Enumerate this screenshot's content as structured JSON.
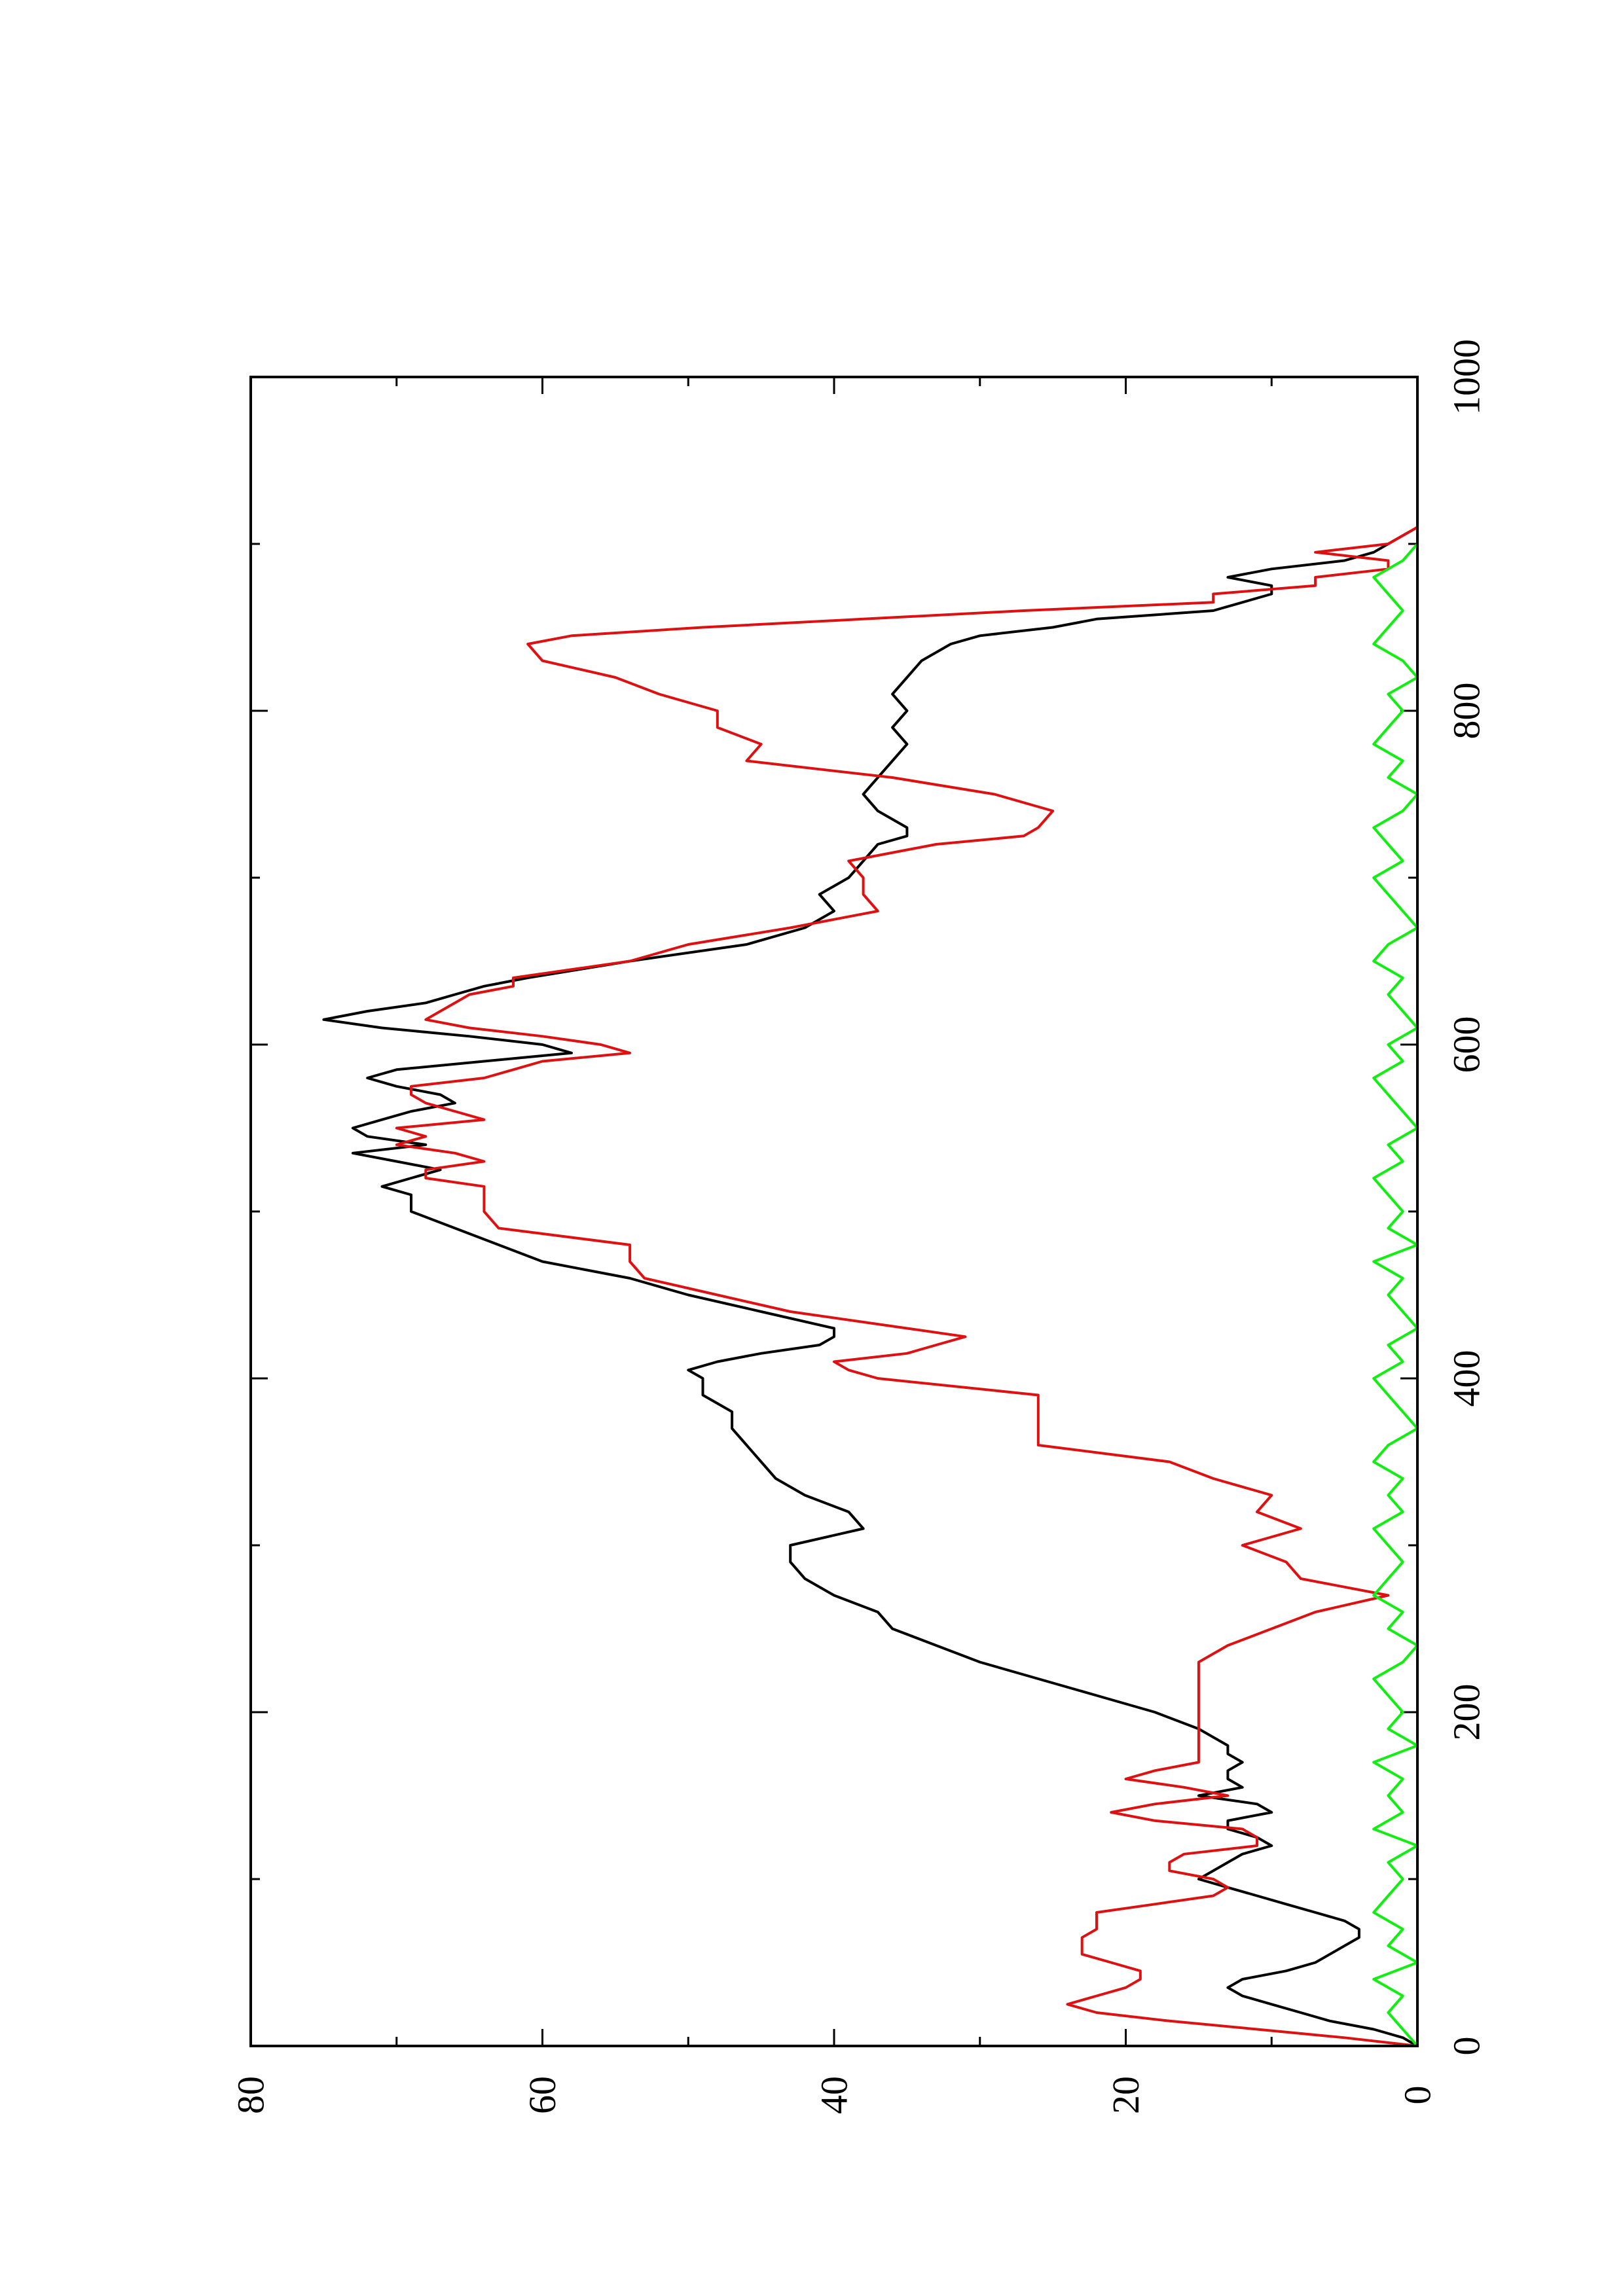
{
  "chart_data": {
    "type": "line",
    "orientation": "rotated 90 degrees counter-clockwise",
    "title": "",
    "xlabel": "",
    "ylabel": "",
    "xlim": [
      0,
      1000
    ],
    "ylim": [
      0,
      80
    ],
    "x_ticks": [
      "0",
      "200",
      "400",
      "600",
      "800",
      "1000"
    ],
    "y_ticks": [
      "0",
      "20",
      "40",
      "60",
      "80"
    ],
    "x_minor_step": 100,
    "y_minor_step": 10,
    "grid": false,
    "legend": "none",
    "series": [
      {
        "color": "#000000",
        "x": [
          0,
          5,
          10,
          15,
          20,
          25,
          30,
          35,
          40,
          45,
          50,
          55,
          60,
          65,
          70,
          75,
          80,
          85,
          90,
          95,
          100,
          105,
          110,
          115,
          120,
          125,
          130,
          135,
          140,
          145,
          150,
          155,
          160,
          165,
          170,
          175,
          180,
          190,
          200,
          210,
          220,
          230,
          240,
          250,
          260,
          270,
          280,
          290,
          300,
          310,
          320,
          330,
          340,
          350,
          360,
          370,
          380,
          390,
          400,
          405,
          410,
          415,
          420,
          425,
          430,
          440,
          450,
          460,
          470,
          480,
          490,
          500,
          510,
          515,
          520,
          525,
          530,
          535,
          540,
          545,
          550,
          555,
          560,
          565,
          570,
          575,
          580,
          585,
          590,
          595,
          600,
          605,
          610,
          615,
          620,
          625,
          630,
          635,
          640,
          650,
          660,
          670,
          680,
          690,
          700,
          710,
          720,
          725,
          730,
          740,
          750,
          760,
          770,
          780,
          790,
          800,
          810,
          820,
          830,
          840,
          845,
          850,
          855,
          860,
          865,
          870,
          875,
          880,
          885,
          890,
          895,
          900,
          905,
          910
        ],
        "y": [
          0,
          1,
          3,
          6,
          8,
          10,
          12,
          13,
          12,
          9,
          7,
          6,
          5,
          4,
          4,
          5,
          7,
          9,
          11,
          13,
          15,
          14,
          13,
          12,
          10,
          11,
          13,
          13,
          10,
          11,
          15,
          12,
          13,
          13,
          12,
          13,
          13,
          15,
          18,
          22,
          26,
          30,
          33,
          36,
          37,
          40,
          42,
          43,
          43,
          38,
          39,
          42,
          44,
          45,
          46,
          47,
          47,
          49,
          49,
          50,
          48,
          45,
          41,
          40,
          40,
          45,
          50,
          54,
          60,
          63,
          66,
          69,
          69,
          71,
          69,
          67,
          70,
          73,
          68,
          72,
          73,
          71,
          69,
          66,
          67,
          70,
          72,
          70,
          64,
          58,
          60,
          65,
          71,
          75,
          72,
          68,
          66,
          64,
          61,
          54,
          46,
          42,
          40,
          41,
          39,
          38,
          37,
          35,
          35,
          37,
          38,
          37,
          36,
          35,
          36,
          35,
          36,
          35,
          34,
          32,
          30,
          25,
          22,
          14,
          12,
          10,
          10,
          13,
          10,
          5,
          3,
          2,
          1,
          0
        ]
      },
      {
        "color": "#dd1111",
        "x": [
          0,
          5,
          10,
          15,
          20,
          25,
          30,
          35,
          40,
          45,
          50,
          55,
          60,
          65,
          70,
          75,
          80,
          85,
          90,
          95,
          100,
          105,
          110,
          115,
          120,
          125,
          130,
          135,
          140,
          145,
          150,
          155,
          160,
          165,
          170,
          175,
          180,
          190,
          200,
          210,
          220,
          230,
          240,
          250,
          260,
          270,
          280,
          290,
          300,
          310,
          320,
          330,
          340,
          350,
          360,
          370,
          380,
          390,
          400,
          405,
          410,
          415,
          420,
          425,
          430,
          440,
          450,
          460,
          470,
          480,
          490,
          500,
          510,
          515,
          520,
          525,
          530,
          535,
          540,
          545,
          550,
          555,
          560,
          565,
          570,
          575,
          580,
          585,
          590,
          595,
          600,
          605,
          610,
          615,
          620,
          625,
          630,
          635,
          640,
          650,
          660,
          670,
          680,
          690,
          700,
          710,
          720,
          725,
          730,
          740,
          750,
          760,
          770,
          780,
          790,
          800,
          810,
          820,
          830,
          840,
          845,
          850,
          855,
          860,
          865,
          870,
          875,
          880,
          885,
          890,
          895,
          900,
          905,
          910
        ],
        "y": [
          0,
          5,
          11,
          17,
          22,
          24,
          22,
          20,
          19,
          19,
          21,
          23,
          23,
          23,
          22,
          22,
          22,
          18,
          14,
          13,
          14,
          17,
          17,
          16,
          11,
          11,
          12,
          18,
          21,
          18,
          13,
          16,
          20,
          18,
          15,
          15,
          15,
          15,
          15,
          15,
          15,
          15,
          13,
          10,
          7,
          2,
          8,
          9,
          12,
          8,
          11,
          10,
          14,
          17,
          26,
          26,
          26,
          26,
          37,
          39,
          40,
          35,
          33,
          31,
          35,
          43,
          48,
          53,
          54,
          54,
          63,
          64,
          64,
          64,
          68,
          68,
          64,
          66,
          70,
          68,
          70,
          64,
          66,
          68,
          69,
          69,
          64,
          62,
          60,
          54,
          56,
          60,
          65,
          68,
          67,
          66,
          65,
          62,
          62,
          54,
          50,
          43,
          37,
          38,
          38,
          39,
          33,
          27,
          26,
          25,
          29,
          36,
          46,
          45,
          48,
          48,
          52,
          55,
          60,
          61,
          58,
          49,
          38,
          27,
          14,
          14,
          7,
          7,
          2,
          2,
          7,
          2,
          1,
          0
        ]
      },
      {
        "color": "#11ee11",
        "x": [
          0,
          10,
          20,
          30,
          40,
          50,
          60,
          70,
          80,
          90,
          100,
          110,
          120,
          130,
          140,
          150,
          160,
          170,
          180,
          190,
          200,
          210,
          220,
          230,
          240,
          250,
          260,
          270,
          280,
          290,
          300,
          310,
          320,
          330,
          340,
          350,
          360,
          370,
          380,
          390,
          400,
          410,
          420,
          430,
          440,
          450,
          460,
          470,
          480,
          490,
          500,
          510,
          520,
          530,
          540,
          550,
          560,
          570,
          580,
          590,
          600,
          610,
          620,
          630,
          640,
          650,
          660,
          670,
          680,
          690,
          700,
          710,
          720,
          730,
          740,
          750,
          760,
          770,
          780,
          790,
          800,
          810,
          820,
          830,
          840,
          850,
          860,
          870,
          880,
          890,
          900,
          910
        ],
        "y": [
          0,
          1,
          2,
          1,
          3,
          0,
          2,
          1,
          3,
          2,
          1,
          2,
          0,
          3,
          1,
          2,
          1,
          3,
          0,
          2,
          1,
          2,
          3,
          1,
          0,
          2,
          1,
          3,
          2,
          1,
          2,
          3,
          1,
          2,
          1,
          3,
          2,
          0,
          1,
          2,
          3,
          1,
          2,
          0,
          1,
          2,
          1,
          3,
          0,
          2,
          1,
          2,
          3,
          1,
          2,
          0,
          1,
          2,
          3,
          1,
          2,
          0,
          1,
          2,
          1,
          3,
          2,
          0,
          1,
          2,
          3,
          1,
          2,
          3,
          1,
          0,
          2,
          1,
          3,
          2,
          1,
          2,
          0,
          1,
          3,
          2,
          1,
          2,
          3,
          1,
          0,
          0
        ]
      }
    ]
  }
}
